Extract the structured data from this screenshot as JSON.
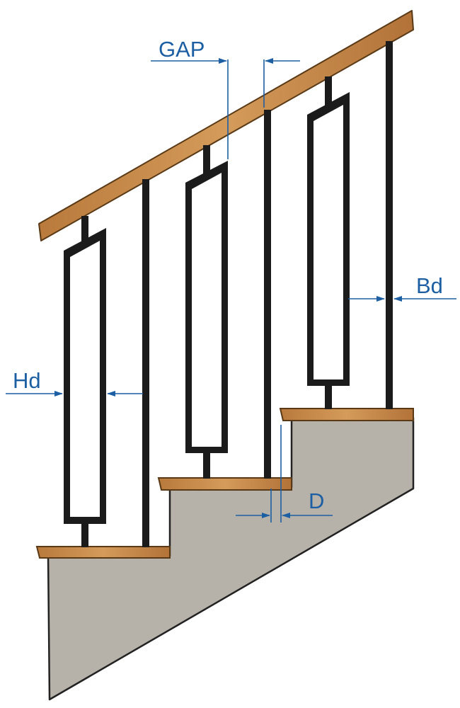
{
  "diagram": {
    "labels": {
      "gap": "GAP",
      "bd": "Bd",
      "hd": "Hd",
      "d": "D"
    }
  },
  "colors": {
    "dimension": "#1d5fa3",
    "baluster": "#1b1b1b",
    "wood": "#c98e4c",
    "wood_edge": "#5a3a16",
    "concrete": "#b7b2a9",
    "concrete_edge": "#222222"
  }
}
